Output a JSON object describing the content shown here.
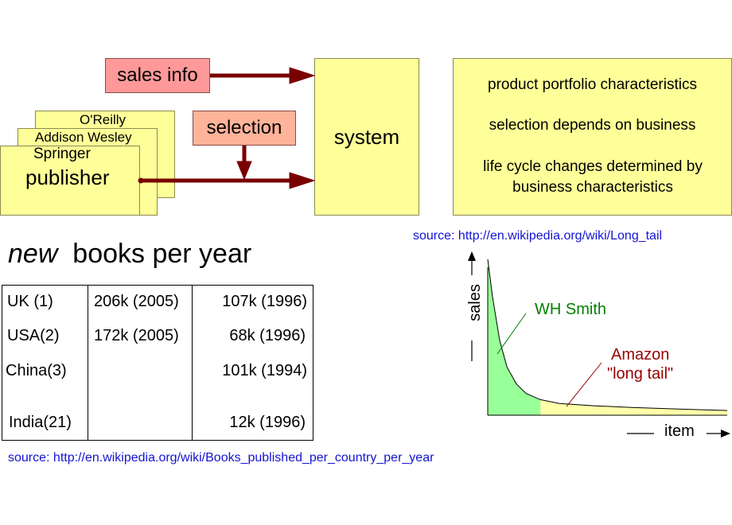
{
  "diagram": {
    "sales_info": "sales info",
    "selection": "selection",
    "system": "system",
    "publishers": [
      "O'Reilly",
      "Addison Wesley",
      "Springer"
    ],
    "publisher": "publisher",
    "portfolio": [
      "product portfolio characteristics",
      "selection depends on business",
      "life cycle changes determined by business characteristics"
    ],
    "colors": {
      "yellow": "#ffff99",
      "pink": "#ff9999",
      "salmon": "#ffb399",
      "arrow": "#7a0000"
    }
  },
  "table": {
    "title_italic": "new",
    "title_rest": "books per year",
    "rows": [
      {
        "country": "UK (1)",
        "v2005": "206k (2005)",
        "vold": "107k (1996)"
      },
      {
        "country": "USA(2)",
        "v2005": "172k (2005)",
        "vold": "68k (1996)"
      },
      {
        "country": "China(3)",
        "v2005": "",
        "vold": "101k (1994)"
      },
      {
        "country": "India(21)",
        "v2005": "",
        "vold": "12k (1996)"
      }
    ],
    "source": "source: http://en.wikipedia.org/wiki/Books_published_per_country_per_year"
  },
  "chart": {
    "source": "source: http://en.wikipedia.org/wiki/Long_tail",
    "wh_smith": "WH Smith",
    "amazon": "Amazon",
    "long_tail": "\"long tail\"",
    "colors": {
      "head": "#99ff99",
      "tail": "#ffffaa",
      "wh_smith": "#008000",
      "amazon": "#990000"
    }
  },
  "chart_data": {
    "type": "area",
    "title": "",
    "xlabel": "item",
    "ylabel": "sales",
    "series": [
      {
        "name": "WH Smith",
        "x": [
          0.0,
          0.02,
          0.05,
          0.08,
          0.12,
          0.16,
          0.22
        ],
        "y": [
          1.0,
          0.76,
          0.48,
          0.31,
          0.2,
          0.14,
          0.1
        ]
      },
      {
        "name": "Amazon \"long tail\"",
        "x": [
          0.22,
          0.3,
          0.45,
          0.6,
          0.8,
          1.0
        ],
        "y": [
          0.1,
          0.075,
          0.06,
          0.05,
          0.04,
          0.03
        ]
      }
    ],
    "grid": false,
    "legend": "none"
  }
}
